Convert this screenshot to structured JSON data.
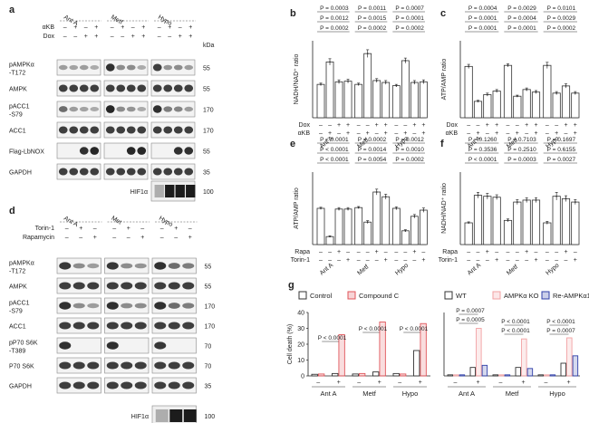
{
  "panels": {
    "a": {
      "letter": "a",
      "groups": [
        "Ant A",
        "Metf",
        "Hypo"
      ],
      "treat_rows": [
        {
          "label": "αKB",
          "signs": [
            "–",
            "+",
            "–",
            "+",
            "–",
            "+",
            "–",
            "+",
            "–",
            "+",
            "–",
            "+"
          ]
        },
        {
          "label": "Dox",
          "signs": [
            "–",
            "–",
            "+",
            "+",
            "–",
            "–",
            "+",
            "+",
            "–",
            "–",
            "+",
            "+"
          ]
        }
      ],
      "kda_label": "kDa",
      "blots": [
        {
          "label": "pAMPKα",
          "label2": "-T172",
          "kda": "55"
        },
        {
          "label": "AMPK",
          "label2": "",
          "kda": "55"
        },
        {
          "label": "pACC1",
          "label2": "-S79",
          "kda": "170"
        },
        {
          "label": "ACC1",
          "label2": "",
          "kda": "170"
        },
        {
          "label": "Flag-LbNOX",
          "label2": "",
          "kda": "55"
        },
        {
          "label": "GAPDH",
          "label2": "",
          "kda": "35"
        }
      ],
      "hif": {
        "label": "HIF1α",
        "kda": "100"
      }
    },
    "d": {
      "letter": "d",
      "groups": [
        "Ant A",
        "Met",
        "Hypo"
      ],
      "treat_rows": [
        {
          "label": "Torin-1",
          "signs": [
            "–",
            "+",
            "–",
            "–",
            "+",
            "–",
            "–",
            "+",
            "–"
          ]
        },
        {
          "label": "Rapamycin",
          "signs": [
            "–",
            "–",
            "+",
            "–",
            "–",
            "+",
            "–",
            "–",
            "+"
          ]
        }
      ],
      "blots": [
        {
          "label": "pAMPKα",
          "label2": "-T172",
          "kda": "55"
        },
        {
          "label": "AMPK",
          "label2": "",
          "kda": "55"
        },
        {
          "label": "pACC1",
          "label2": "-S79",
          "kda": "170"
        },
        {
          "label": "ACC1",
          "label2": "",
          "kda": "170"
        },
        {
          "label": "pP70 S6K",
          "label2": "-T389",
          "kda": "70"
        },
        {
          "label": "P70 S6K",
          "label2": "",
          "kda": "70"
        },
        {
          "label": "GAPDH",
          "label2": "",
          "kda": "35"
        }
      ],
      "hif": {
        "label": "HIF1α",
        "kda": "100"
      }
    }
  },
  "chart_data": [
    {
      "panel": "b",
      "type": "bar",
      "ylabel": "NADH/NAD⁺ ratio",
      "ylim": [
        0,
        1.2
      ],
      "groups": [
        "Ant A",
        "Metf",
        "Hypo"
      ],
      "values": [
        0.52,
        0.87,
        0.56,
        0.57,
        0.52,
        1.0,
        0.58,
        0.55,
        0.5,
        0.89,
        0.55,
        0.56
      ],
      "errors": [
        0.02,
        0.05,
        0.03,
        0.03,
        0.02,
        0.06,
        0.03,
        0.03,
        0.02,
        0.04,
        0.03,
        0.03
      ],
      "treat_rows": [
        {
          "label": "Dox",
          "signs": [
            "–",
            "–",
            "+",
            "+",
            "–",
            "–",
            "+",
            "+",
            "–",
            "–",
            "+",
            "+"
          ]
        },
        {
          "label": "αKB",
          "signs": [
            "–",
            "+",
            "–",
            "+",
            "–",
            "+",
            "–",
            "+",
            "–",
            "+",
            "–",
            "+"
          ]
        }
      ],
      "pvalues": [
        [
          "P = 0.0003",
          "P = 0.0012",
          "P = 0.0002"
        ],
        [
          "P = 0.0011",
          "P = 0.0015",
          "P = 0.0002"
        ],
        [
          "P = 0.0007",
          "P = 0.0001",
          "P = 0.0002"
        ]
      ]
    },
    {
      "panel": "c",
      "type": "bar",
      "ylabel": "ATP/AMP ratio",
      "ylim": [
        0,
        1.5
      ],
      "groups": [
        "Ant A",
        "Metf",
        "Hypo"
      ],
      "values": [
        1.0,
        0.32,
        0.45,
        0.52,
        1.02,
        0.42,
        0.55,
        0.5,
        1.02,
        0.48,
        0.62,
        0.48
      ],
      "errors": [
        0.04,
        0.02,
        0.03,
        0.03,
        0.03,
        0.02,
        0.03,
        0.03,
        0.06,
        0.03,
        0.04,
        0.03
      ],
      "treat_rows": [
        {
          "label": "Dox",
          "signs": [
            "–",
            "–",
            "+",
            "+",
            "–",
            "–",
            "+",
            "+",
            "–",
            "–",
            "+",
            "+"
          ]
        },
        {
          "label": "αKB",
          "signs": [
            "–",
            "+",
            "–",
            "+",
            "–",
            "+",
            "–",
            "+",
            "–",
            "+",
            "–",
            "+"
          ]
        }
      ],
      "pvalues": [
        [
          "P = 0.0004",
          "P = 0.0001",
          "P = 0.0001"
        ],
        [
          "P = 0.0029",
          "P = 0.0004",
          "P = 0.0001"
        ],
        [
          "P = 0.0101",
          "P = 0.0029",
          "P = 0.0002"
        ]
      ]
    },
    {
      "panel": "e",
      "type": "bar",
      "ylabel": "ATP/AMP ratio",
      "ylim": [
        0,
        2.0
      ],
      "groups": [
        "Ant A",
        "Metf",
        "Hypo"
      ],
      "values": [
        1.0,
        0.22,
        0.98,
        0.98,
        1.02,
        0.62,
        1.45,
        1.32,
        1.0,
        0.38,
        0.78,
        0.95
      ],
      "errors": [
        0.03,
        0.02,
        0.04,
        0.04,
        0.03,
        0.04,
        0.08,
        0.07,
        0.04,
        0.03,
        0.05,
        0.06
      ],
      "treat_rows": [
        {
          "label": "Rapa",
          "signs": [
            "–",
            "–",
            "+",
            "–",
            "–",
            "–",
            "+",
            "–",
            "–",
            "–",
            "+",
            "–"
          ]
        },
        {
          "label": "Torin-1",
          "signs": [
            "–",
            "–",
            "–",
            "+",
            "–",
            "–",
            "–",
            "+",
            "–",
            "–",
            "–",
            "+"
          ]
        }
      ],
      "pvalues": [
        [
          "P < 0.0001",
          "P < 0.0001",
          "P < 0.0001"
        ],
        [
          "P = 0.0002",
          "P = 0.0014",
          "P = 0.0054"
        ],
        [
          "P = 0.0012",
          "P = 0.0010",
          "P = 0.0002"
        ]
      ]
    },
    {
      "panel": "f",
      "type": "bar",
      "ylabel": "NADH/NAD⁺ ratio",
      "ylim": [
        0,
        1.5
      ],
      "groups": [
        "Ant A",
        "Metf",
        "Hypo"
      ],
      "values": [
        0.45,
        1.02,
        1.0,
        0.98,
        0.5,
        0.88,
        0.92,
        0.92,
        0.45,
        1.0,
        0.95,
        0.88
      ],
      "errors": [
        0.02,
        0.06,
        0.06,
        0.05,
        0.03,
        0.05,
        0.05,
        0.05,
        0.03,
        0.08,
        0.06,
        0.05
      ],
      "treat_rows": [
        {
          "label": "Rapa",
          "signs": [
            "–",
            "–",
            "+",
            "–",
            "–",
            "–",
            "+",
            "–",
            "–",
            "–",
            "+",
            "–"
          ]
        },
        {
          "label": "Torin-1",
          "signs": [
            "–",
            "–",
            "–",
            "+",
            "–",
            "–",
            "–",
            "+",
            "–",
            "–",
            "–",
            "+"
          ]
        }
      ],
      "pvalues": [
        [
          "P = 0.1260",
          "P = 0.3536",
          "P < 0.0001"
        ],
        [
          "P = 0.7103",
          "P = 0.2510",
          "P = 0.0003"
        ],
        [
          "P = 0.1697",
          "P = 0.6155",
          "P = 0.0027"
        ]
      ]
    },
    {
      "panel": "g1",
      "type": "bar",
      "ylabel": "Cell death (%)",
      "ylim": [
        0,
        40
      ],
      "yticks": [
        0,
        10,
        20,
        30,
        40
      ],
      "groups": [
        "Ant A",
        "Metf",
        "Hypo"
      ],
      "signs": [
        "–",
        "+"
      ],
      "legend": [
        "Control",
        "Compound C"
      ],
      "series": [
        {
          "name": "Control",
          "values": [
            1.0,
            1.5,
            1.2,
            2.5,
            1.5,
            16.0
          ]
        },
        {
          "name": "Compound C",
          "values": [
            1.2,
            26.0,
            1.5,
            34.0,
            1.2,
            33.0
          ]
        }
      ],
      "pvalues": [
        "P < 0.0001",
        "P < 0.0001",
        "P < 0.0001"
      ]
    },
    {
      "panel": "g2",
      "type": "bar",
      "ylabel": "",
      "ylim": [
        0,
        60
      ],
      "groups": [
        "Ant A",
        "Metf",
        "Hypo"
      ],
      "signs": [
        "–",
        "+"
      ],
      "legend": [
        "WT",
        "AMPKα KO",
        "Re-AMPKα1"
      ],
      "series": [
        {
          "name": "WT",
          "values": [
            1.0,
            8.0,
            1.0,
            8.0,
            1.0,
            12.0
          ]
        },
        {
          "name": "AMPKα KO",
          "values": [
            1.0,
            45.0,
            1.0,
            35.0,
            1.0,
            36.0
          ]
        },
        {
          "name": "Re-AMPKα1",
          "values": [
            1.0,
            10.0,
            1.0,
            7.0,
            1.0,
            19.0
          ]
        }
      ],
      "pvalues": [
        [
          "P = 0.0007",
          "P = 0.0005"
        ],
        [
          "P < 0.0001",
          "P < 0.0001"
        ],
        [
          "P < 0.0001",
          "P = 0.0007"
        ]
      ]
    }
  ],
  "colors": {
    "compound": "#e0555a",
    "ko": "#f2a0a2",
    "re": "#2f3fa8",
    "bar": "#ffffff",
    "bar_stroke": "#333333"
  }
}
